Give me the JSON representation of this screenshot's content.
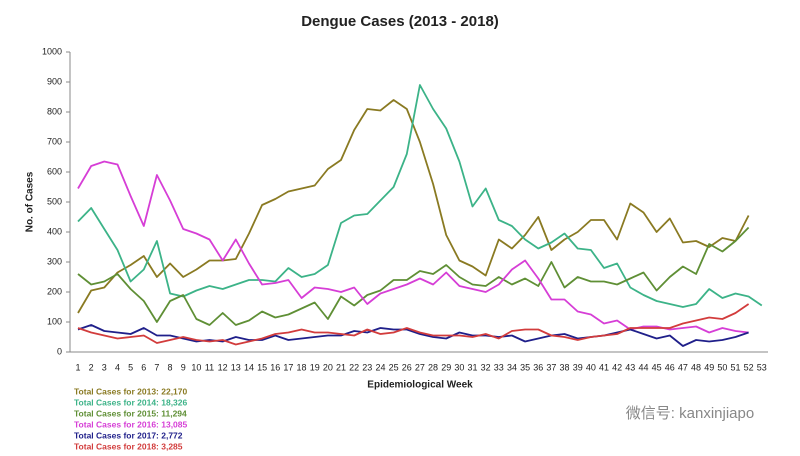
{
  "chart_data": {
    "type": "line",
    "title": "Dengue Cases (2013 - 2018)",
    "x_label": "Epidemiological  Week",
    "y_label": "No. of Cases",
    "watermark": "微信号: kanxinjiapo",
    "categories": [
      "1",
      "2",
      "3",
      "4",
      "5",
      "6",
      "7",
      "8",
      "9",
      "10",
      "11",
      "12",
      "13",
      "14",
      "15",
      "16",
      "17",
      "18",
      "19",
      "20",
      "21",
      "22",
      "23",
      "24",
      "25",
      "26",
      "27",
      "28",
      "29",
      "30",
      "31",
      "32",
      "33",
      "34",
      "35",
      "36",
      "37",
      "38",
      "39",
      "40",
      "41",
      "42",
      "43",
      "44",
      "45",
      "46",
      "47",
      "48",
      "49",
      "50",
      "51",
      "52",
      "53"
    ],
    "ylim": [
      0,
      1000
    ],
    "yticks": [
      0,
      100,
      200,
      300,
      400,
      500,
      600,
      700,
      800,
      900,
      1000
    ],
    "grid": false,
    "series": [
      {
        "name": "Total Cases for 2013: 22,170",
        "color": "#8a7a22",
        "values": [
          130,
          205,
          215,
          265,
          290,
          320,
          250,
          295,
          250,
          275,
          305,
          305,
          310,
          395,
          490,
          510,
          535,
          545,
          555,
          610,
          640,
          740,
          810,
          805,
          840,
          810,
          700,
          560,
          390,
          305,
          285,
          255,
          375,
          345,
          390,
          450,
          340,
          375,
          400,
          440,
          440,
          375,
          495,
          465,
          400,
          445,
          365,
          370,
          350,
          380,
          370,
          455,
          null
        ]
      },
      {
        "name": "Total Cases for 2014: 18,326",
        "color": "#3cb388",
        "values": [
          435,
          480,
          410,
          340,
          235,
          275,
          370,
          195,
          185,
          205,
          220,
          210,
          225,
          240,
          240,
          235,
          280,
          250,
          260,
          290,
          430,
          455,
          460,
          505,
          550,
          660,
          890,
          810,
          745,
          635,
          485,
          545,
          440,
          420,
          375,
          345,
          365,
          395,
          345,
          340,
          280,
          295,
          215,
          190,
          170,
          160,
          150,
          160,
          210,
          180,
          195,
          185,
          155
        ]
      },
      {
        "name": "Total Cases for 2015: 11,294",
        "color": "#5f8f35",
        "values": [
          260,
          225,
          235,
          260,
          210,
          170,
          100,
          170,
          190,
          110,
          90,
          130,
          90,
          105,
          135,
          115,
          125,
          145,
          165,
          110,
          185,
          155,
          190,
          205,
          240,
          240,
          270,
          260,
          290,
          250,
          225,
          220,
          250,
          225,
          245,
          220,
          300,
          215,
          250,
          235,
          235,
          225,
          245,
          265,
          205,
          250,
          285,
          260,
          360,
          335,
          370,
          415,
          null
        ]
      },
      {
        "name": "Total Cases for 2016: 13,085",
        "color": "#d63ed6",
        "values": [
          545,
          620,
          635,
          625,
          520,
          420,
          590,
          505,
          410,
          395,
          375,
          305,
          375,
          295,
          225,
          230,
          240,
          180,
          215,
          210,
          200,
          215,
          160,
          195,
          210,
          225,
          245,
          225,
          265,
          220,
          210,
          200,
          225,
          275,
          305,
          245,
          175,
          175,
          135,
          125,
          95,
          105,
          75,
          85,
          85,
          75,
          80,
          85,
          65,
          80,
          70,
          65,
          null
        ]
      },
      {
        "name": "Total Cases for 2017: 2,772",
        "color": "#1f1f8a",
        "values": [
          75,
          90,
          70,
          65,
          60,
          80,
          55,
          55,
          45,
          35,
          40,
          35,
          50,
          40,
          40,
          55,
          40,
          45,
          50,
          55,
          55,
          70,
          65,
          80,
          75,
          75,
          60,
          50,
          45,
          65,
          55,
          55,
          50,
          55,
          35,
          45,
          55,
          60,
          45,
          50,
          55,
          65,
          75,
          60,
          45,
          55,
          20,
          40,
          35,
          40,
          50,
          65,
          null
        ]
      },
      {
        "name": "Total Cases for 2018: 3,285",
        "color": "#d23c3c",
        "values": [
          80,
          65,
          55,
          45,
          50,
          55,
          30,
          40,
          50,
          40,
          35,
          40,
          25,
          35,
          45,
          60,
          65,
          75,
          65,
          65,
          60,
          55,
          75,
          60,
          65,
          80,
          65,
          55,
          55,
          55,
          50,
          60,
          45,
          70,
          75,
          75,
          55,
          50,
          40,
          50,
          55,
          60,
          80,
          80,
          80,
          80,
          95,
          105,
          115,
          110,
          130,
          160,
          null
        ]
      }
    ]
  }
}
